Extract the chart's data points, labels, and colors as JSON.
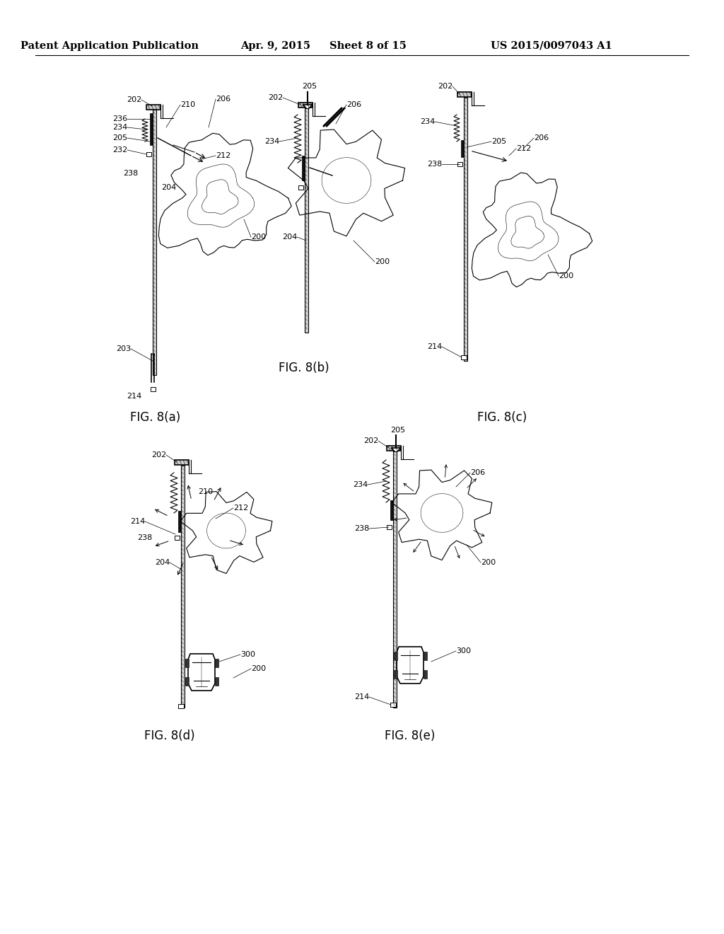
{
  "background_color": "#ffffff",
  "header_text": "Patent Application Publication",
  "header_date": "Apr. 9, 2015",
  "header_sheet": "Sheet 8 of 15",
  "header_patent": "US 2015/0097043 A1",
  "header_font_size": 10.5,
  "fig_labels": [
    "FIG. 8(a)",
    "FIG. 8(b)",
    "FIG. 8(c)",
    "FIG. 8(d)",
    "FIG. 8(e)"
  ],
  "fig_label_font_size": 12,
  "note_fontsize": 8
}
